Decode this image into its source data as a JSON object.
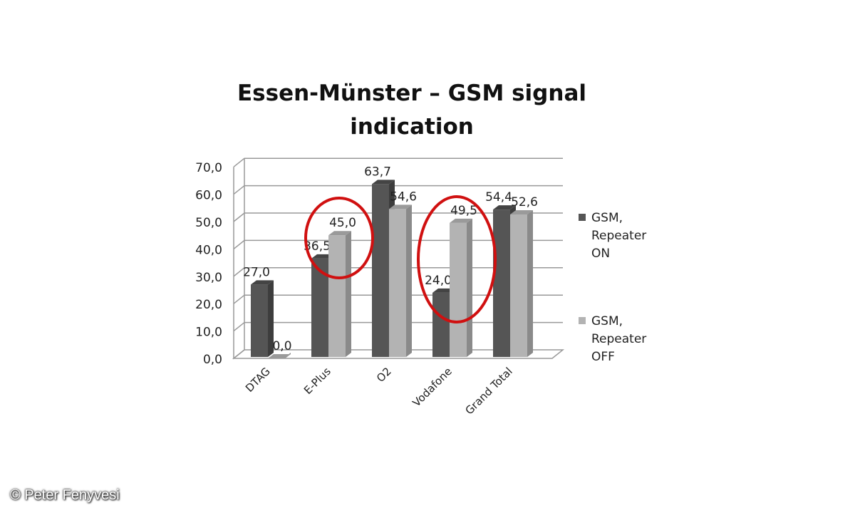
{
  "chart_data": {
    "type": "bar",
    "title": "Essen-Münster – GSM signal indication",
    "title_lines": [
      "Essen-Münster – GSM signal",
      "indication"
    ],
    "categories": [
      "DTAG",
      "E-Plus",
      "O2",
      "Vodafone",
      "Grand Total"
    ],
    "series": [
      {
        "name": "GSM, Repeater ON",
        "name_lines": [
          "GSM,",
          "Repeater",
          "ON"
        ],
        "color": "#555555",
        "values": [
          27.0,
          36.5,
          63.7,
          24.0,
          54.4
        ],
        "labels": [
          "27,0",
          "36,5",
          "63,7",
          "24,0",
          "54,4"
        ]
      },
      {
        "name": "GSM, Repeater OFF",
        "name_lines": [
          "GSM,",
          "Repeater",
          "OFF"
        ],
        "color": "#b3b3b3",
        "values": [
          0.0,
          45.0,
          54.6,
          49.5,
          52.6
        ],
        "labels": [
          "0,0",
          "45,0",
          "54,6",
          "49,5",
          "52,6"
        ]
      }
    ],
    "ylim": [
      0,
      70
    ],
    "yticks": [
      "0,0",
      "10,0",
      "20,0",
      "30,0",
      "40,0",
      "50,0",
      "60,0",
      "70,0"
    ],
    "grid": true,
    "style": "3d-clustered-column",
    "legend": "right",
    "highlighted_categories": [
      "E-Plus",
      "Vodafone"
    ],
    "highlight_color": "#d01010"
  },
  "credit": "© Peter Fenyvesi"
}
